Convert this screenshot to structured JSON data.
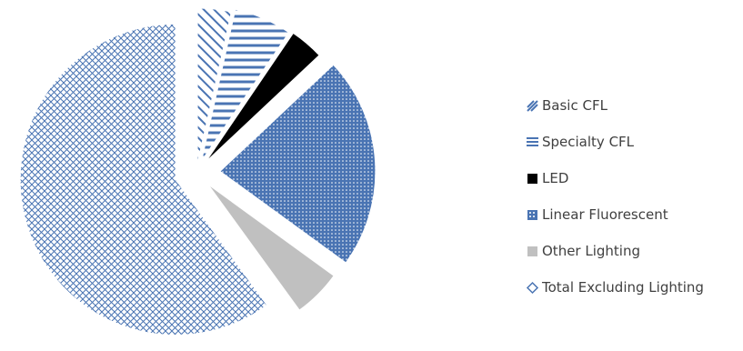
{
  "chart_data": {
    "type": "pie",
    "title": "",
    "legend_position": "right",
    "categories": [
      "Basic CFL",
      "Specialty CFL",
      "LED",
      "Linear Fluorescent",
      "Other Lighting",
      "Total Excluding Lighting"
    ],
    "values": [
      3.5,
      6.0,
      3.5,
      22.0,
      5.0,
      60.0
    ],
    "exploded": true,
    "series": [
      {
        "values": [
          3.5,
          6.0,
          3.5,
          22.0,
          5.0,
          60.0
        ]
      }
    ],
    "slices": [
      {
        "label": "Basic CFL",
        "value": 3.5,
        "color": "#4a74b3",
        "pattern": "diagonal-stripes"
      },
      {
        "label": "Specialty CFL",
        "value": 6.0,
        "color": "#4a74b3",
        "pattern": "horizontal-stripes"
      },
      {
        "label": "LED",
        "value": 3.5,
        "color": "#000000",
        "pattern": "solid"
      },
      {
        "label": "Linear Fluorescent",
        "value": 22.0,
        "color": "#4a74b3",
        "pattern": "dotted-grid"
      },
      {
        "label": "Other Lighting",
        "value": 5.0,
        "color": "#c0c0c0",
        "pattern": "solid"
      },
      {
        "label": "Total Excluding Lighting",
        "value": 60.0,
        "color": "#4a74b3",
        "pattern": "crosshatch"
      }
    ]
  },
  "legend": {
    "items": [
      "Basic CFL",
      "Specialty CFL",
      "LED",
      "Linear Fluorescent",
      "Other Lighting",
      "Total Excluding Lighting"
    ]
  },
  "colors": {
    "accent_blue": "#4a74b3",
    "led_black": "#000000",
    "other_gray": "#c0c0c0",
    "legend_text": "#404040"
  }
}
